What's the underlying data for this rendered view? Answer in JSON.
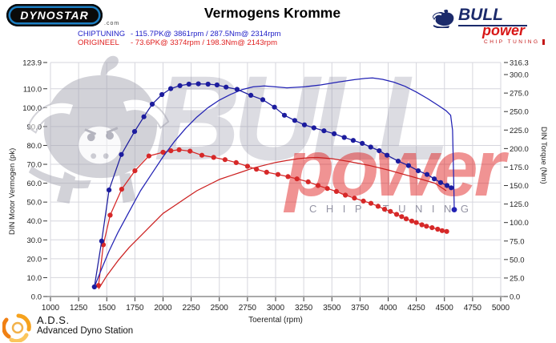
{
  "header": {
    "logo_text": "DYNOSTAR",
    "logo_suffix": ".com",
    "title": "Vermogens Kromme",
    "brand": {
      "name": "BULL",
      "sub": "power",
      "tagline": "CHIP TUNING"
    }
  },
  "legend": [
    {
      "label": "CHIPTUNING",
      "stats": "- 115.7PK@ 3861rpm / 287.5Nm@ 2314rpm",
      "color": "#2121c8"
    },
    {
      "label": "ORIGINEEL",
      "stats": "- 73.6PK@ 3374rpm / 198.3Nm@ 2143rpm",
      "color": "#e02020"
    }
  ],
  "watermark": {
    "big_text": "BULL",
    "script_text": "power",
    "sub_text": "CHIP TUNING"
  },
  "footer": {
    "abbr": "A.D.S.",
    "name": "Advanced Dyno Station"
  },
  "chart_data": {
    "type": "line",
    "title": "Vermogens Kromme",
    "xlabel": "Toerental (rpm)",
    "ylabel_left": "DIN Motor Vermogen (pk)",
    "ylabel_right": "DIN Torque (Nm)",
    "xlim": [
      1000,
      5000
    ],
    "ylim_left": [
      0,
      123.9
    ],
    "ylim_right": [
      0,
      316.3
    ],
    "grid": true,
    "x_ticks": [
      1000,
      1250,
      1500,
      1750,
      2000,
      2250,
      2500,
      2750,
      3000,
      3250,
      3500,
      3750,
      4000,
      4250,
      4500,
      4750,
      5000
    ],
    "left_tick_labels": [
      "123.9",
      "110.0",
      "100.0",
      "90.0",
      "80.0",
      "70.0",
      "60.0",
      "50.0",
      "40.0",
      "30.0",
      "20.0",
      "10.0",
      "0.0"
    ],
    "right_tick_labels": [
      "316.3",
      "300.0",
      "275.0",
      "250.0",
      "225.0",
      "200.0",
      "175.0",
      "150.0",
      "125.0",
      "100.0",
      "75.0",
      "50.0",
      "25.0",
      "0.0"
    ],
    "series": [
      {
        "name": "origineel-power-pk",
        "axis": "left",
        "color": "#cc2020",
        "markers": false,
        "end_marker": false,
        "points": [
          [
            1427,
            4
          ],
          [
            1500,
            11
          ],
          [
            1600,
            19
          ],
          [
            1700,
            26
          ],
          [
            1800,
            32
          ],
          [
            1900,
            38
          ],
          [
            2000,
            44
          ],
          [
            2100,
            48
          ],
          [
            2200,
            52
          ],
          [
            2300,
            56
          ],
          [
            2400,
            59
          ],
          [
            2500,
            62
          ],
          [
            2600,
            64
          ],
          [
            2700,
            66
          ],
          [
            2800,
            68
          ],
          [
            2900,
            69.5
          ],
          [
            3000,
            71
          ],
          [
            3100,
            72
          ],
          [
            3200,
            73
          ],
          [
            3300,
            73.5
          ],
          [
            3374,
            73.6
          ],
          [
            3500,
            73
          ],
          [
            3650,
            71.5
          ],
          [
            3825,
            69.5
          ],
          [
            4000,
            67
          ],
          [
            4180,
            64
          ],
          [
            4300,
            62
          ],
          [
            4416,
            60
          ],
          [
            4516,
            56
          ]
        ]
      },
      {
        "name": "origineel-torque-nm",
        "axis": "right",
        "color": "#d62828",
        "markers": true,
        "end_marker": false,
        "points": [
          [
            1427,
            15
          ],
          [
            1470,
            70
          ],
          [
            1530,
            110
          ],
          [
            1633,
            145
          ],
          [
            1750,
            170
          ],
          [
            1875,
            190
          ],
          [
            2000,
            195
          ],
          [
            2070,
            197
          ],
          [
            2143,
            198.3
          ],
          [
            2240,
            196.5
          ],
          [
            2345,
            191
          ],
          [
            2450,
            188
          ],
          [
            2551,
            185
          ],
          [
            2650,
            181
          ],
          [
            2750,
            176
          ],
          [
            2830,
            172
          ],
          [
            2920,
            168
          ],
          [
            3021,
            165
          ],
          [
            3110,
            162
          ],
          [
            3190,
            159
          ],
          [
            3290,
            155
          ],
          [
            3377,
            150
          ],
          [
            3460,
            146
          ],
          [
            3540,
            142
          ],
          [
            3620,
            137
          ],
          [
            3700,
            133
          ],
          [
            3780,
            129
          ],
          [
            3847,
            126
          ],
          [
            3910,
            122
          ],
          [
            3968,
            118
          ],
          [
            4020,
            115
          ],
          [
            4075,
            111
          ],
          [
            4120,
            108
          ],
          [
            4160,
            105
          ],
          [
            4210,
            102
          ],
          [
            4250,
            100
          ],
          [
            4300,
            97
          ],
          [
            4340,
            95
          ],
          [
            4390,
            93
          ],
          [
            4440,
            91
          ],
          [
            4480,
            89
          ],
          [
            4520,
            88
          ]
        ]
      },
      {
        "name": "chiptuning-power-pk",
        "axis": "left",
        "color": "#2222b4",
        "markers": false,
        "end_marker": true,
        "points": [
          [
            1390,
            5
          ],
          [
            1450,
            14
          ],
          [
            1520,
            24
          ],
          [
            1600,
            34
          ],
          [
            1700,
            45
          ],
          [
            1800,
            56
          ],
          [
            1900,
            65
          ],
          [
            2000,
            74
          ],
          [
            2100,
            82
          ],
          [
            2200,
            89
          ],
          [
            2300,
            95
          ],
          [
            2400,
            100
          ],
          [
            2500,
            104
          ],
          [
            2600,
            107
          ],
          [
            2700,
            109.5
          ],
          [
            2800,
            111
          ],
          [
            2900,
            111.5
          ],
          [
            3000,
            111
          ],
          [
            3100,
            110.5
          ],
          [
            3250,
            111
          ],
          [
            3400,
            112
          ],
          [
            3550,
            113.5
          ],
          [
            3700,
            114.8
          ],
          [
            3800,
            115.5
          ],
          [
            3861,
            115.7
          ],
          [
            3950,
            115
          ],
          [
            4050,
            113.5
          ],
          [
            4150,
            111.3
          ],
          [
            4250,
            108.3
          ],
          [
            4350,
            104.8
          ],
          [
            4450,
            101
          ],
          [
            4516,
            98.3
          ],
          [
            4555,
            96
          ],
          [
            4572,
            88
          ],
          [
            4582,
            62
          ],
          [
            4587,
            46
          ]
        ]
      },
      {
        "name": "chiptuning-torque-nm",
        "axis": "right",
        "color": "#1c1c9e",
        "markers": true,
        "end_marker": false,
        "points": [
          [
            1390,
            13
          ],
          [
            1455,
            75
          ],
          [
            1520,
            144
          ],
          [
            1630,
            192
          ],
          [
            1747,
            223
          ],
          [
            1830,
            243
          ],
          [
            1904,
            260
          ],
          [
            1990,
            273
          ],
          [
            2068,
            281
          ],
          [
            2150,
            285
          ],
          [
            2230,
            287
          ],
          [
            2314,
            287.5
          ],
          [
            2400,
            287
          ],
          [
            2480,
            286
          ],
          [
            2560,
            283
          ],
          [
            2658,
            280
          ],
          [
            2780,
            272
          ],
          [
            2886,
            266
          ],
          [
            2990,
            256
          ],
          [
            3078,
            245
          ],
          [
            3170,
            238
          ],
          [
            3256,
            232
          ],
          [
            3340,
            228
          ],
          [
            3430,
            224
          ],
          [
            3520,
            220
          ],
          [
            3610,
            215
          ],
          [
            3690,
            211
          ],
          [
            3770,
            207
          ],
          [
            3845,
            202
          ],
          [
            3920,
            197
          ],
          [
            3990,
            191
          ],
          [
            4089,
            183
          ],
          [
            4181,
            177
          ],
          [
            4267,
            170
          ],
          [
            4345,
            165
          ],
          [
            4410,
            159
          ],
          [
            4466,
            154
          ],
          [
            4523,
            150
          ],
          [
            4560,
            147
          ]
        ]
      }
    ]
  }
}
